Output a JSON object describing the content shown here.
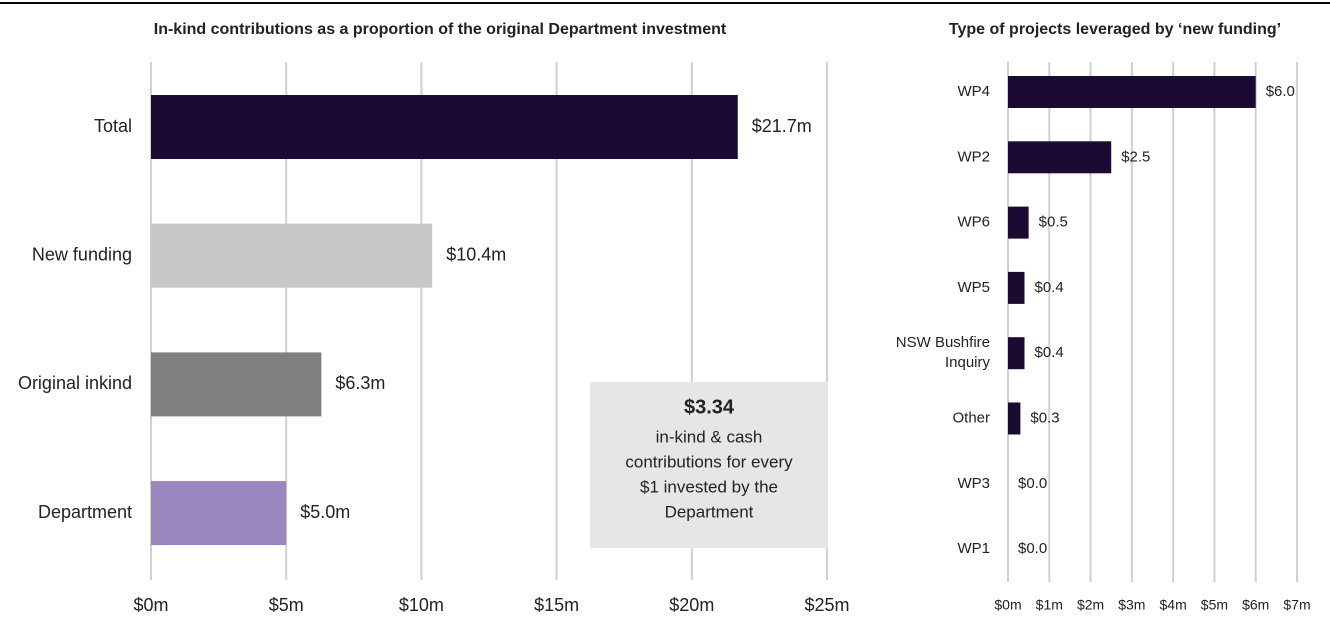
{
  "chart_data": [
    {
      "type": "barh",
      "title": "In-kind contributions as a proportion of the original Department investment",
      "categories": [
        "Total",
        "New funding",
        "Original inkind",
        "Department"
      ],
      "values": [
        21.7,
        10.4,
        6.3,
        5.0
      ],
      "value_labels": [
        "$21.7m",
        "$10.4m",
        "$6.3m",
        "$5.0m"
      ],
      "colors": [
        "#1b0b33",
        "#c8c8c8",
        "#808080",
        "#9b87c0"
      ],
      "xlim": [
        0,
        25
      ],
      "xticks": [
        {
          "value": 0,
          "label": "$0m"
        },
        {
          "value": 5,
          "label": "$5m"
        },
        {
          "value": 10,
          "label": "$10m"
        },
        {
          "value": 15,
          "label": "$15m"
        },
        {
          "value": 20,
          "label": "$20m"
        },
        {
          "value": 25,
          "label": "$25m"
        }
      ],
      "grid": true,
      "annotation": {
        "headline": "$3.34",
        "lines": [
          "in-kind & cash",
          "contributions for every",
          "$1 invested by the",
          "Department"
        ]
      }
    },
    {
      "type": "barh",
      "title": "Type of projects leveraged by ‘new funding’",
      "categories": [
        "WP4",
        "WP2",
        "WP6",
        "WP5",
        "NSW Bushfire Inquiry",
        "Other",
        "WP3",
        "WP1"
      ],
      "values": [
        6.0,
        2.5,
        0.5,
        0.4,
        0.4,
        0.3,
        0.0,
        0.0
      ],
      "value_labels": [
        "$6.0",
        "$2.5",
        "$0.5",
        "$0.4",
        "$0.4",
        "$0.3",
        "$0.0",
        "$0.0"
      ],
      "color": "#1b0b33",
      "xlim": [
        0,
        7
      ],
      "xticks": [
        {
          "value": 0,
          "label": "$0m"
        },
        {
          "value": 1,
          "label": "$1m"
        },
        {
          "value": 2,
          "label": "$2m"
        },
        {
          "value": 3,
          "label": "$3m"
        },
        {
          "value": 4,
          "label": "$4m"
        },
        {
          "value": 5,
          "label": "$5m"
        },
        {
          "value": 6,
          "label": "$6m"
        },
        {
          "value": 7,
          "label": "$7m"
        }
      ],
      "grid": true
    }
  ]
}
